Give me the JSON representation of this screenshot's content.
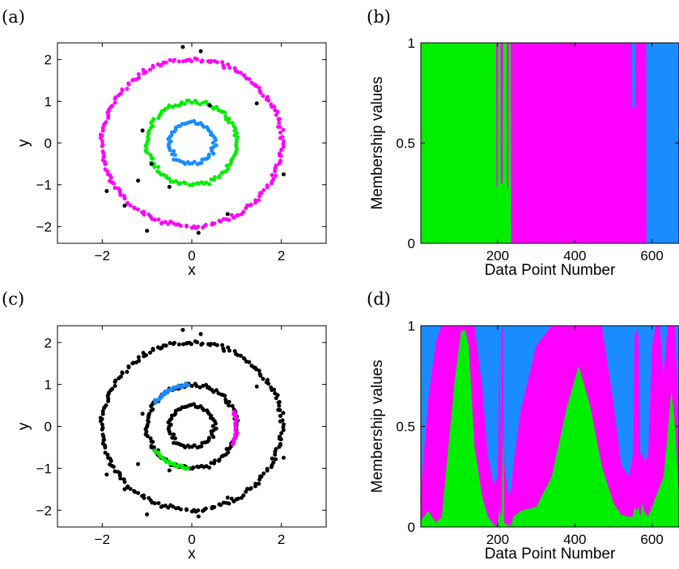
{
  "colors": {
    "green": "#00ee00",
    "magenta": "#ff00ff",
    "blue": "#1a8cff",
    "black": "#000000"
  },
  "chart_data": [
    {
      "panel": "(a)",
      "type": "scatter",
      "xlabel": "x",
      "ylabel": "y",
      "xlim": [
        -3,
        3
      ],
      "ylim": [
        -2.4,
        2.4
      ],
      "xticks": [
        "−2",
        "0",
        "2"
      ],
      "xtick_values": [
        -2,
        0,
        2
      ],
      "yticks": [
        "−2",
        "−1",
        "0",
        "1",
        "2"
      ],
      "ytick_values": [
        -2,
        -1,
        0,
        1,
        2
      ],
      "rings": [
        {
          "radius": 0.5,
          "n": 60,
          "color": "blue"
        },
        {
          "radius": 1.0,
          "n": 110,
          "color": "green"
        },
        {
          "radius": 2.0,
          "n": 200,
          "color": "magenta"
        }
      ],
      "outliers": [
        [
          -0.2,
          2.3
        ],
        [
          -1.1,
          0.3
        ],
        [
          -0.9,
          -0.5
        ],
        [
          -1.2,
          -0.9
        ],
        [
          -1.9,
          -1.15
        ],
        [
          -1.5,
          -1.5
        ],
        [
          -1.0,
          -2.1
        ],
        [
          0.15,
          -2.15
        ],
        [
          0.8,
          -1.7
        ],
        [
          0.4,
          0.9
        ],
        [
          1.45,
          0.95
        ],
        [
          2.05,
          -0.75
        ],
        [
          -0.5,
          -1.05
        ],
        [
          0.2,
          2.2
        ]
      ]
    },
    {
      "panel": "(b)",
      "type": "area",
      "xlabel": "Data Point Number",
      "ylabel": "Membership values",
      "xlim": [
        1,
        670
      ],
      "ylim": [
        0,
        1
      ],
      "xticks": [
        "200",
        "400",
        "600"
      ],
      "xtick_values": [
        200,
        400,
        600
      ],
      "yticks": [
        "0",
        "0.5",
        "1"
      ],
      "ytick_values": [
        0,
        0.5,
        1
      ],
      "stack_order": [
        "green",
        "magenta",
        "blue"
      ],
      "x": [
        1,
        196,
        197,
        200,
        201,
        207,
        208,
        213,
        214,
        224,
        225,
        228,
        229,
        234,
        235,
        548,
        549,
        556,
        557,
        560,
        561,
        585,
        586,
        670
      ],
      "series": [
        {
          "color": "green",
          "values": [
            1,
            1,
            0.28,
            0.28,
            1,
            1,
            0.3,
            0.3,
            1,
            1,
            0.28,
            0.28,
            1,
            1,
            0,
            0,
            0,
            0,
            0,
            0,
            0,
            0,
            0,
            0
          ]
        },
        {
          "color": "magenta",
          "values": [
            0,
            0,
            0.72,
            0.72,
            0,
            0,
            0.7,
            0.7,
            0,
            0,
            0.72,
            0.72,
            0,
            0,
            1,
            1,
            0.68,
            0.68,
            1,
            1,
            1,
            1,
            0,
            0
          ]
        },
        {
          "color": "blue",
          "values": [
            0,
            0,
            0,
            0,
            0,
            0,
            0,
            0,
            0,
            0,
            0,
            0,
            0,
            0,
            0,
            0,
            0.32,
            0.32,
            0,
            0,
            0,
            0,
            1,
            1
          ]
        }
      ]
    },
    {
      "panel": "(c)",
      "type": "scatter",
      "xlabel": "x",
      "ylabel": "y",
      "xlim": [
        -3,
        3
      ],
      "ylim": [
        -2.4,
        2.4
      ],
      "xticks": [
        "−2",
        "0",
        "2"
      ],
      "xtick_values": [
        -2,
        0,
        2
      ],
      "yticks": [
        "−2",
        "−1",
        "0",
        "1",
        "2"
      ],
      "ytick_values": [
        -2,
        -1,
        0,
        1,
        2
      ],
      "rings": [
        {
          "radius": 0.5,
          "n": 60,
          "color": "black"
        },
        {
          "radius": 1.0,
          "n": 110,
          "color": "black"
        },
        {
          "radius": 2.0,
          "n": 200,
          "color": "black"
        }
      ],
      "arcs": [
        {
          "radius": 1.0,
          "start_deg": 95,
          "end_deg": 145,
          "n": 22,
          "color": "blue"
        },
        {
          "radius": 1.0,
          "start_deg": -25,
          "end_deg": 20,
          "n": 18,
          "color": "magenta"
        },
        {
          "radius": 1.0,
          "start_deg": 215,
          "end_deg": 265,
          "n": 20,
          "color": "green"
        }
      ],
      "outliers": [
        [
          -0.2,
          2.3
        ],
        [
          -1.1,
          0.3
        ],
        [
          -0.9,
          -0.5
        ],
        [
          -1.2,
          -0.9
        ],
        [
          -1.9,
          -1.15
        ],
        [
          -1.5,
          -1.5
        ],
        [
          -1.0,
          -2.1
        ],
        [
          0.15,
          -2.15
        ],
        [
          0.8,
          -1.7
        ],
        [
          0.4,
          0.9
        ],
        [
          1.45,
          0.95
        ],
        [
          2.05,
          -0.75
        ],
        [
          -0.5,
          -1.05
        ],
        [
          0.2,
          2.2
        ]
      ]
    },
    {
      "panel": "(d)",
      "type": "area",
      "xlabel": "Data Point Number",
      "ylabel": "Membership values",
      "xlim": [
        1,
        670
      ],
      "ylim": [
        0,
        1
      ],
      "xticks": [
        "200",
        "400",
        "600"
      ],
      "xtick_values": [
        200,
        400,
        600
      ],
      "yticks": [
        "0",
        "0.5",
        "1"
      ],
      "ytick_values": [
        0,
        0.5,
        1
      ],
      "stack_order": [
        "green",
        "magenta",
        "blue"
      ],
      "x": [
        1,
        20,
        40,
        55,
        70,
        90,
        105,
        115,
        125,
        140,
        160,
        175,
        190,
        200,
        205,
        208,
        211,
        214,
        217,
        225,
        230,
        233,
        236,
        240,
        260,
        300,
        340,
        380,
        410,
        440,
        470,
        500,
        520,
        540,
        550,
        555,
        560,
        565,
        570,
        575,
        580,
        590,
        600,
        610,
        620,
        630,
        640,
        650,
        660,
        670
      ],
      "series": [
        {
          "color": "green",
          "values": [
            0.03,
            0.08,
            0.02,
            0.05,
            0.35,
            0.75,
            0.97,
            0.98,
            0.9,
            0.4,
            0.15,
            0.05,
            0.01,
            0.0,
            0.1,
            0.05,
            0.08,
            0.5,
            0.02,
            0.01,
            0.0,
            0.02,
            0.0,
            0.05,
            0.08,
            0.1,
            0.25,
            0.6,
            0.8,
            0.6,
            0.3,
            0.12,
            0.06,
            0.05,
            0.05,
            0.1,
            0.08,
            0.1,
            0.05,
            0.12,
            0.08,
            0.05,
            0.1,
            0.15,
            0.2,
            0.25,
            0.45,
            0.68,
            0.5,
            0.15
          ]
        },
        {
          "color": "magenta",
          "values": [
            0.15,
            0.55,
            0.9,
            0.98,
            0.95,
            0.9,
            0.88,
            0.92,
            0.95,
            0.8,
            0.55,
            0.3,
            0.2,
            0.25,
            0.85,
            0.3,
            0.9,
            0.95,
            0.3,
            0.2,
            0.15,
            0.15,
            0.2,
            0.25,
            0.5,
            0.8,
            0.88,
            0.88,
            0.9,
            0.88,
            0.75,
            0.5,
            0.25,
            0.2,
            0.3,
            0.85,
            0.9,
            0.85,
            0.3,
            0.25,
            0.25,
            0.3,
            0.8,
            0.85,
            0.8,
            0.5,
            0.75,
            0.9,
            0.85,
            0.3
          ]
        }
      ]
    }
  ]
}
